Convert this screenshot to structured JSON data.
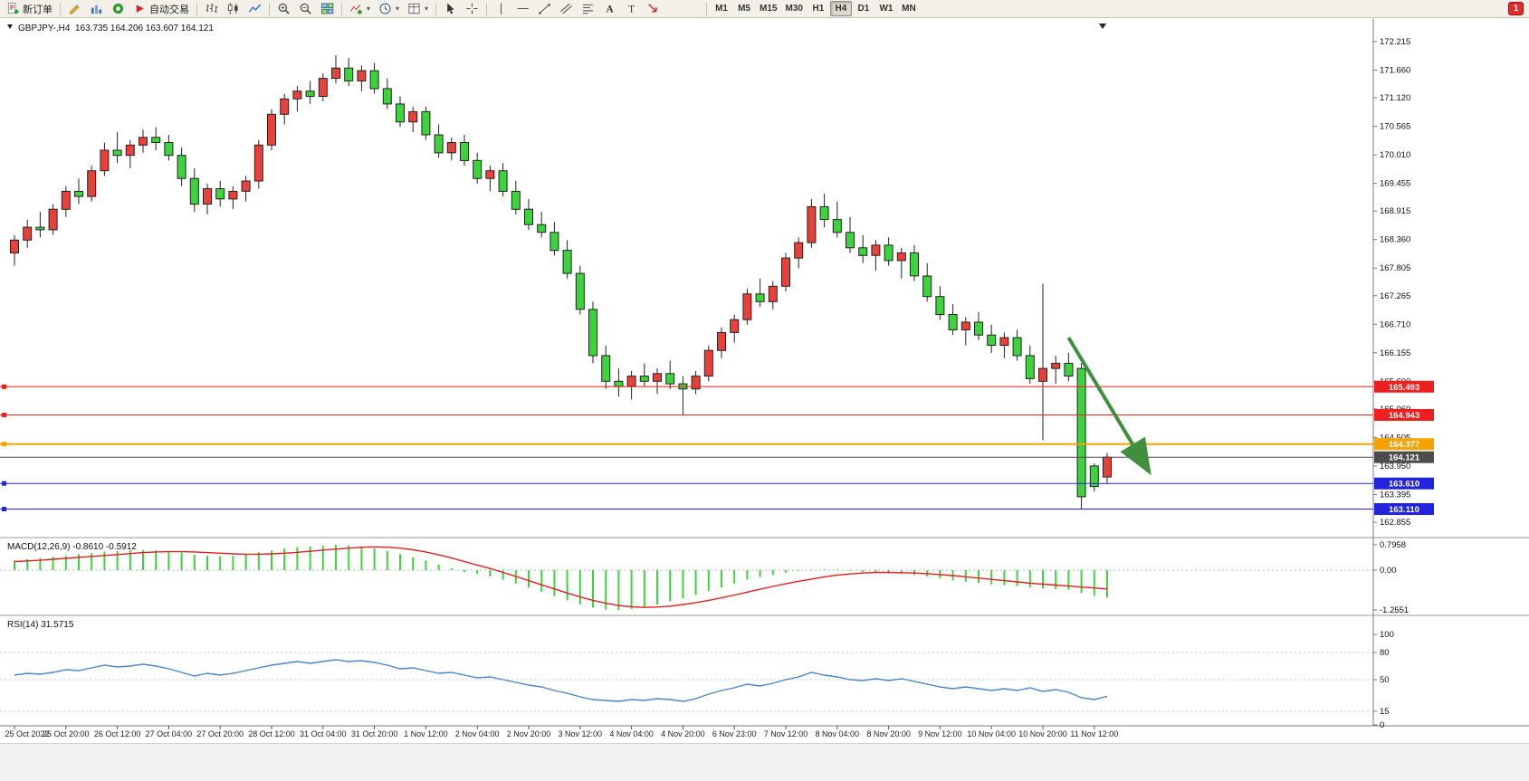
{
  "toolbar": {
    "groups": [
      {
        "items": [
          {
            "name": "new-order-button",
            "icon": "new-order-icon",
            "label": "新订单"
          }
        ]
      },
      {
        "items": [
          {
            "name": "metaeditor-button",
            "icon": "pencil-icon"
          },
          {
            "name": "market-watch-button",
            "icon": "market-watch-icon"
          },
          {
            "name": "data-window-button",
            "icon": "data-window-icon"
          },
          {
            "name": "autotrading-button",
            "icon": "autotrading-icon",
            "label": "自动交易"
          }
        ]
      },
      {
        "items": [
          {
            "name": "bar-chart-button",
            "icon": "bar-chart-icon"
          },
          {
            "name": "candlestick-button",
            "icon": "candlestick-icon"
          },
          {
            "name": "line-chart-button",
            "icon": "line-chart-icon"
          }
        ]
      },
      {
        "items": [
          {
            "name": "zoom-in-button",
            "icon": "zoom-in-icon"
          },
          {
            "name": "zoom-out-button",
            "icon": "zoom-out-icon"
          },
          {
            "name": "tile-windows-button",
            "icon": "tile-windows-icon"
          }
        ]
      },
      {
        "items": [
          {
            "name": "indicators-button",
            "icon": "indicators-icon",
            "dropdown": true
          },
          {
            "name": "periods-button",
            "icon": "periods-icon",
            "dropdown": true
          },
          {
            "name": "templates-button",
            "icon": "templates-icon",
            "dropdown": true
          }
        ]
      },
      {
        "items": [
          {
            "name": "cursor-button",
            "icon": "cursor-icon"
          },
          {
            "name": "crosshair-button",
            "icon": "crosshair-icon"
          }
        ]
      },
      {
        "items": [
          {
            "name": "vertical-line-button",
            "icon": "vertical-line-icon"
          },
          {
            "name": "horizontal-line-button",
            "icon": "horizontal-line-icon"
          },
          {
            "name": "trendline-button",
            "icon": "trendline-icon"
          },
          {
            "name": "channel-button",
            "icon": "channel-icon"
          },
          {
            "name": "fibonacci-button",
            "icon": "fibonacci-icon"
          },
          {
            "name": "text-button",
            "icon": "text-icon"
          },
          {
            "name": "text-label-button",
            "icon": "text-label-icon"
          },
          {
            "name": "arrows-button",
            "icon": "arrows-icon"
          }
        ]
      }
    ],
    "timeframes": [
      "M1",
      "M5",
      "M15",
      "M30",
      "H1",
      "H4",
      "D1",
      "W1",
      "MN"
    ],
    "active_timeframe": "H4",
    "notification_count": "1"
  },
  "chart_header": {
    "symbol_period": "GBPJPY-,H4",
    "open": "163.735",
    "high": "164.206",
    "low": "163.607",
    "close": "164.121"
  },
  "price_axis": {
    "ticks": [
      "172.215",
      "171.660",
      "171.120",
      "170.565",
      "170.010",
      "169.455",
      "168.915",
      "168.360",
      "167.805",
      "167.265",
      "166.710",
      "166.155",
      "165.600",
      "165.060",
      "164.505",
      "163.950",
      "163.395",
      "162.855"
    ]
  },
  "time_axis": {
    "ticks": [
      "25 Oct 2022",
      "25 Oct 20:00",
      "26 Oct 12:00",
      "27 Oct 04:00",
      "27 Oct 20:00",
      "28 Oct 12:00",
      "31 Oct 04:00",
      "31 Oct 20:00",
      "1 Nov 12:00",
      "2 Nov 04:00",
      "2 Nov 20:00",
      "3 Nov 12:00",
      "4 Nov 04:00",
      "4 Nov 20:00",
      "6 Nov 23:00",
      "7 Nov 12:00",
      "8 Nov 04:00",
      "8 Nov 20:00",
      "9 Nov 12:00",
      "10 Nov 04:00",
      "10 Nov 20:00",
      "11 Nov 12:00"
    ]
  },
  "price_lines": [
    {
      "price": 165.493,
      "label": "165.493",
      "color": "#f01f1f",
      "width": 1
    },
    {
      "price": 164.943,
      "label": "164.943",
      "color": "#f01f1f",
      "width": 1
    },
    {
      "price": 164.377,
      "label": "164.377",
      "color": "#f5a300",
      "width": 2
    },
    {
      "price": 163.61,
      "label": "163.610",
      "color": "#2323dd",
      "width": 1
    },
    {
      "price": 163.11,
      "label": "163.110",
      "color": "#2323dd",
      "width": 1
    }
  ],
  "current_price_line": {
    "price": 164.121,
    "label": "164.121",
    "color": "#4d4d4d"
  },
  "annotations": {
    "arrow": {
      "color": "#3f8f3f",
      "from_index": 82,
      "from_price": 166.45,
      "to_index": 88,
      "to_price": 163.95
    }
  },
  "macd_panel": {
    "label": "MACD(12,26,9)",
    "values": "-0.8610 -0.5912",
    "axis_ticks": [
      "0.7958",
      "0.00",
      "-1.2551"
    ]
  },
  "rsi_panel": {
    "label": "RSI(14)",
    "value": "31.5715",
    "axis_ticks": [
      "100",
      "80",
      "50",
      "15",
      "0"
    ]
  },
  "chart_data": {
    "type": "candlestick",
    "symbol": "GBPJPY-",
    "timeframe": "H4",
    "title": "GBPJPY-,H4 163.735 164.206 163.607 164.121",
    "up_color": "#e8403a",
    "down_color": "#3dd33d",
    "price_range": [
      162.855,
      172.215
    ],
    "ohlc_current": {
      "open": 163.735,
      "high": 164.206,
      "low": 163.607,
      "close": 164.121
    },
    "candles": [
      [
        168.1,
        168.45,
        167.85,
        168.35
      ],
      [
        168.35,
        168.75,
        168.2,
        168.6
      ],
      [
        168.6,
        168.9,
        168.4,
        168.55
      ],
      [
        168.55,
        169.05,
        168.45,
        168.95
      ],
      [
        168.95,
        169.4,
        168.8,
        169.3
      ],
      [
        169.3,
        169.55,
        169.05,
        169.2
      ],
      [
        169.2,
        169.8,
        169.1,
        169.7
      ],
      [
        169.7,
        170.25,
        169.6,
        170.1
      ],
      [
        170.1,
        170.45,
        169.85,
        170.0
      ],
      [
        170.0,
        170.3,
        169.75,
        170.2
      ],
      [
        170.2,
        170.5,
        170.05,
        170.35
      ],
      [
        170.35,
        170.55,
        170.1,
        170.25
      ],
      [
        170.25,
        170.4,
        169.9,
        170.0
      ],
      [
        170.0,
        170.15,
        169.4,
        169.55
      ],
      [
        169.55,
        169.75,
        168.9,
        169.05
      ],
      [
        169.05,
        169.45,
        168.85,
        169.35
      ],
      [
        169.35,
        169.5,
        169.0,
        169.15
      ],
      [
        169.15,
        169.4,
        168.95,
        169.3
      ],
      [
        169.3,
        169.6,
        169.1,
        169.5
      ],
      [
        169.5,
        170.3,
        169.35,
        170.2
      ],
      [
        170.2,
        170.9,
        170.1,
        170.8
      ],
      [
        170.8,
        171.2,
        170.6,
        171.1
      ],
      [
        171.1,
        171.35,
        170.85,
        171.25
      ],
      [
        171.25,
        171.45,
        171.0,
        171.15
      ],
      [
        171.15,
        171.6,
        171.05,
        171.5
      ],
      [
        171.5,
        171.95,
        171.4,
        171.7
      ],
      [
        171.7,
        171.9,
        171.35,
        171.45
      ],
      [
        171.45,
        171.75,
        171.25,
        171.65
      ],
      [
        171.65,
        171.8,
        171.2,
        171.3
      ],
      [
        171.3,
        171.5,
        170.9,
        171.0
      ],
      [
        171.0,
        171.15,
        170.55,
        170.65
      ],
      [
        170.65,
        170.95,
        170.45,
        170.85
      ],
      [
        170.85,
        170.95,
        170.3,
        170.4
      ],
      [
        170.4,
        170.6,
        169.95,
        170.05
      ],
      [
        170.05,
        170.35,
        169.9,
        170.25
      ],
      [
        170.25,
        170.4,
        169.8,
        169.9
      ],
      [
        169.9,
        170.05,
        169.45,
        169.55
      ],
      [
        169.55,
        169.8,
        169.3,
        169.7
      ],
      [
        169.7,
        169.85,
        169.2,
        169.3
      ],
      [
        169.3,
        169.5,
        168.85,
        168.95
      ],
      [
        168.95,
        169.15,
        168.55,
        168.65
      ],
      [
        168.65,
        168.9,
        168.4,
        168.5
      ],
      [
        168.5,
        168.7,
        168.05,
        168.15
      ],
      [
        168.15,
        168.35,
        167.6,
        167.7
      ],
      [
        167.7,
        167.85,
        166.9,
        167.0
      ],
      [
        167.0,
        167.15,
        165.95,
        166.1
      ],
      [
        166.1,
        166.3,
        165.45,
        165.6
      ],
      [
        165.6,
        165.85,
        165.3,
        165.5
      ],
      [
        165.5,
        165.8,
        165.25,
        165.7
      ],
      [
        165.7,
        165.95,
        165.5,
        165.6
      ],
      [
        165.6,
        165.85,
        165.35,
        165.75
      ],
      [
        165.75,
        166.0,
        165.45,
        165.55
      ],
      [
        165.55,
        165.7,
        164.95,
        165.45
      ],
      [
        165.45,
        165.8,
        165.35,
        165.7
      ],
      [
        165.7,
        166.3,
        165.6,
        166.2
      ],
      [
        166.2,
        166.65,
        166.05,
        166.55
      ],
      [
        166.55,
        166.9,
        166.35,
        166.8
      ],
      [
        166.8,
        167.4,
        166.7,
        167.3
      ],
      [
        167.3,
        167.6,
        167.05,
        167.15
      ],
      [
        167.15,
        167.55,
        167.0,
        167.45
      ],
      [
        167.45,
        168.1,
        167.35,
        168.0
      ],
      [
        168.0,
        168.4,
        167.8,
        168.3
      ],
      [
        168.3,
        169.15,
        168.2,
        169.0
      ],
      [
        169.0,
        169.25,
        168.6,
        168.75
      ],
      [
        168.75,
        169.1,
        168.4,
        168.5
      ],
      [
        168.5,
        168.8,
        168.1,
        168.2
      ],
      [
        168.2,
        168.45,
        167.9,
        168.05
      ],
      [
        168.05,
        168.35,
        167.75,
        168.25
      ],
      [
        168.25,
        168.4,
        167.85,
        167.95
      ],
      [
        167.95,
        168.2,
        167.6,
        168.1
      ],
      [
        168.1,
        168.25,
        167.55,
        167.65
      ],
      [
        167.65,
        167.9,
        167.15,
        167.25
      ],
      [
        167.25,
        167.45,
        166.8,
        166.9
      ],
      [
        166.9,
        167.1,
        166.5,
        166.6
      ],
      [
        166.6,
        166.85,
        166.3,
        166.75
      ],
      [
        166.75,
        166.95,
        166.4,
        166.5
      ],
      [
        166.5,
        166.7,
        166.15,
        166.3
      ],
      [
        166.3,
        166.55,
        166.05,
        166.45
      ],
      [
        166.45,
        166.6,
        166.0,
        166.1
      ],
      [
        166.1,
        166.3,
        165.55,
        165.65
      ],
      [
        165.6,
        167.5,
        164.45,
        165.85
      ],
      [
        165.85,
        166.1,
        165.55,
        165.95
      ],
      [
        165.95,
        166.15,
        165.6,
        165.7
      ],
      [
        165.85,
        165.95,
        163.11,
        163.35
      ],
      [
        163.95,
        164.0,
        163.45,
        163.55
      ],
      [
        163.735,
        164.206,
        163.607,
        164.121
      ]
    ],
    "indicators": {
      "macd": {
        "label": "MACD(12,26,9)",
        "current_values": [
          -0.861,
          -0.5912
        ],
        "range": [
          -1.2551,
          0.7958
        ],
        "histogram_color": "#3dd33d",
        "signal_color": "#e02020",
        "histogram": [
          0.3,
          0.34,
          0.38,
          0.42,
          0.46,
          0.5,
          0.54,
          0.58,
          0.6,
          0.62,
          0.63,
          0.62,
          0.6,
          0.55,
          0.48,
          0.45,
          0.44,
          0.45,
          0.5,
          0.56,
          0.62,
          0.68,
          0.72,
          0.74,
          0.76,
          0.79,
          0.78,
          0.74,
          0.68,
          0.6,
          0.5,
          0.4,
          0.3,
          0.18,
          0.06,
          -0.06,
          -0.12,
          -0.2,
          -0.3,
          -0.42,
          -0.55,
          -0.68,
          -0.82,
          -0.95,
          -1.08,
          -1.18,
          -1.24,
          -1.25,
          -1.22,
          -1.16,
          -1.08,
          -0.98,
          -0.88,
          -0.78,
          -0.66,
          -0.54,
          -0.42,
          -0.3,
          -0.22,
          -0.15,
          -0.08,
          -0.02,
          0.02,
          0.03,
          0.02,
          -0.02,
          -0.06,
          -0.08,
          -0.1,
          -0.12,
          -0.15,
          -0.2,
          -0.26,
          -0.32,
          -0.36,
          -0.4,
          -0.44,
          -0.47,
          -0.5,
          -0.54,
          -0.58,
          -0.6,
          -0.62,
          -0.72,
          -0.8,
          -0.861
        ],
        "signal": [
          0.27,
          0.29,
          0.31,
          0.34,
          0.37,
          0.4,
          0.43,
          0.46,
          0.49,
          0.52,
          0.55,
          0.57,
          0.58,
          0.58,
          0.57,
          0.55,
          0.53,
          0.51,
          0.5,
          0.5,
          0.51,
          0.53,
          0.56,
          0.59,
          0.63,
          0.66,
          0.69,
          0.72,
          0.73,
          0.72,
          0.69,
          0.64,
          0.57,
          0.48,
          0.38,
          0.27,
          0.16,
          0.05,
          -0.07,
          -0.2,
          -0.33,
          -0.46,
          -0.59,
          -0.72,
          -0.84,
          -0.95,
          -1.04,
          -1.11,
          -1.15,
          -1.17,
          -1.16,
          -1.13,
          -1.08,
          -1.02,
          -0.95,
          -0.87,
          -0.78,
          -0.69,
          -0.6,
          -0.51,
          -0.43,
          -0.35,
          -0.28,
          -0.21,
          -0.16,
          -0.12,
          -0.09,
          -0.07,
          -0.07,
          -0.08,
          -0.09,
          -0.11,
          -0.14,
          -0.17,
          -0.21,
          -0.25,
          -0.29,
          -0.33,
          -0.37,
          -0.41,
          -0.44,
          -0.47,
          -0.5,
          -0.53,
          -0.56,
          -0.5912
        ]
      },
      "rsi": {
        "label": "RSI(14)",
        "current_value": 31.5715,
        "range": [
          0,
          100
        ],
        "color": "#4a86c8",
        "levels": [
          80,
          50,
          15
        ],
        "values": [
          55,
          57,
          56,
          58,
          61,
          60,
          63,
          66,
          64,
          65,
          67,
          65,
          62,
          58,
          54,
          57,
          55,
          57,
          60,
          63,
          66,
          68,
          70,
          68,
          70,
          72,
          70,
          71,
          69,
          66,
          62,
          63,
          60,
          57,
          58,
          55,
          52,
          53,
          50,
          47,
          44,
          42,
          38,
          35,
          31,
          28,
          27,
          26,
          28,
          27,
          29,
          28,
          26,
          29,
          34,
          38,
          41,
          45,
          43,
          46,
          50,
          53,
          58,
          55,
          53,
          50,
          49,
          51,
          49,
          51,
          48,
          45,
          42,
          40,
          42,
          40,
          38,
          40,
          38,
          41,
          37,
          39,
          36,
          30,
          28,
          31.57
        ]
      }
    }
  }
}
